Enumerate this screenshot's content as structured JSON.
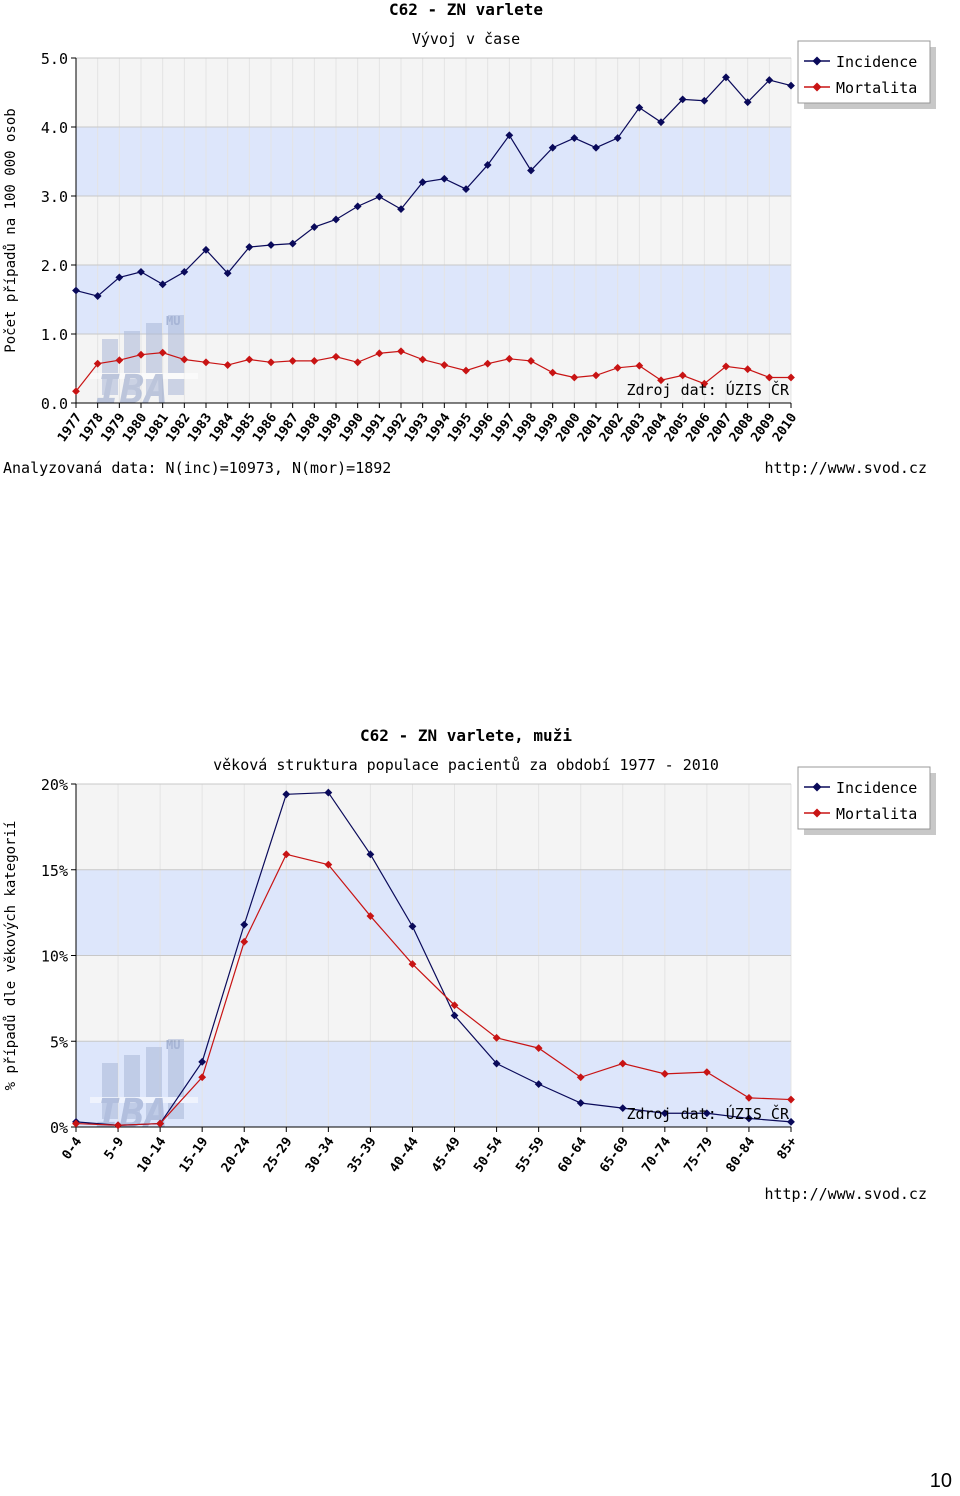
{
  "page_number": "10",
  "chart_data": [
    {
      "type": "line",
      "title": "C62 - ZN varlete",
      "subtitle": "Vývoj v čase",
      "ylabel": "Počet případů na 100 000 osob",
      "xlabel": "",
      "ylim": [
        0,
        5
      ],
      "yticks": [
        "0.0",
        "1.0",
        "2.0",
        "3.0",
        "4.0",
        "5.0"
      ],
      "yticks_values": [
        0,
        1,
        2,
        3,
        4,
        5
      ],
      "categories": [
        "1977",
        "1978",
        "1979",
        "1980",
        "1981",
        "1982",
        "1983",
        "1984",
        "1985",
        "1986",
        "1987",
        "1988",
        "1989",
        "1990",
        "1991",
        "1992",
        "1993",
        "1994",
        "1995",
        "1996",
        "1997",
        "1998",
        "1999",
        "2000",
        "2001",
        "2002",
        "2003",
        "2004",
        "2005",
        "2006",
        "2007",
        "2008",
        "2009",
        "2010"
      ],
      "series": [
        {
          "name": "Incidence",
          "color": "#0a0a5a",
          "values": [
            1.63,
            1.55,
            1.82,
            1.9,
            1.72,
            1.9,
            2.22,
            1.88,
            2.26,
            2.29,
            2.31,
            2.55,
            2.66,
            2.85,
            2.99,
            2.81,
            3.2,
            3.25,
            3.1,
            3.45,
            3.88,
            3.37,
            3.7,
            3.84,
            3.7,
            3.84,
            4.28,
            4.07,
            4.4,
            4.38,
            4.72,
            4.36,
            4.68,
            4.6
          ]
        },
        {
          "name": "Mortalita",
          "color": "#c81414",
          "values": [
            0.17,
            0.57,
            0.62,
            0.7,
            0.73,
            0.63,
            0.59,
            0.55,
            0.63,
            0.59,
            0.61,
            0.61,
            0.67,
            0.59,
            0.72,
            0.75,
            0.63,
            0.55,
            0.47,
            0.57,
            0.64,
            0.61,
            0.44,
            0.37,
            0.4,
            0.51,
            0.54,
            0.33,
            0.4,
            0.28,
            0.53,
            0.49,
            0.37,
            0.37
          ]
        }
      ],
      "legend_position": "top-right",
      "source_note": "Zdroj dat: ÚZIS ČR",
      "footer_left": "Analyzovaná data: N(inc)=10973, N(mor)=1892",
      "footer_right": "http://www.svod.cz",
      "watermark": "MU IBA",
      "colors": {
        "band": "#dde6fb",
        "band_alt": "#f4f4f4"
      }
    },
    {
      "type": "line",
      "title": "C62 - ZN varlete, muži",
      "subtitle": "věková struktura populace pacientů za období 1977 - 2010",
      "ylabel": "% případů dle věkových kategorií",
      "xlabel": "",
      "ylim": [
        0,
        20
      ],
      "yticks": [
        "0%",
        "5%",
        "10%",
        "15%",
        "20%"
      ],
      "yticks_values": [
        0,
        5,
        10,
        15,
        20
      ],
      "categories": [
        "0-4",
        "5-9",
        "10-14",
        "15-19",
        "20-24",
        "25-29",
        "30-34",
        "35-39",
        "40-44",
        "45-49",
        "50-54",
        "55-59",
        "60-64",
        "65-69",
        "70-74",
        "75-79",
        "80-84",
        "85+"
      ],
      "series": [
        {
          "name": "Incidence",
          "color": "#0a0a5a",
          "values": [
            0.3,
            0.1,
            0.2,
            3.8,
            11.8,
            19.4,
            19.5,
            15.9,
            11.7,
            6.5,
            3.7,
            2.5,
            1.4,
            1.1,
            0.8,
            0.8,
            0.5,
            0.3
          ]
        },
        {
          "name": "Mortalita",
          "color": "#c81414",
          "values": [
            0.2,
            0.1,
            0.2,
            2.9,
            10.8,
            15.9,
            15.3,
            12.3,
            9.5,
            7.1,
            5.2,
            4.6,
            2.9,
            3.7,
            3.1,
            3.2,
            1.7,
            1.6
          ]
        }
      ],
      "legend_position": "top-right",
      "source_note": "Zdroj dat: ÚZIS ČR",
      "footer_left": "",
      "footer_right": "http://www.svod.cz",
      "watermark": "MU IBA",
      "colors": {
        "band": "#dde6fb",
        "band_alt": "#f4f4f4"
      }
    }
  ]
}
